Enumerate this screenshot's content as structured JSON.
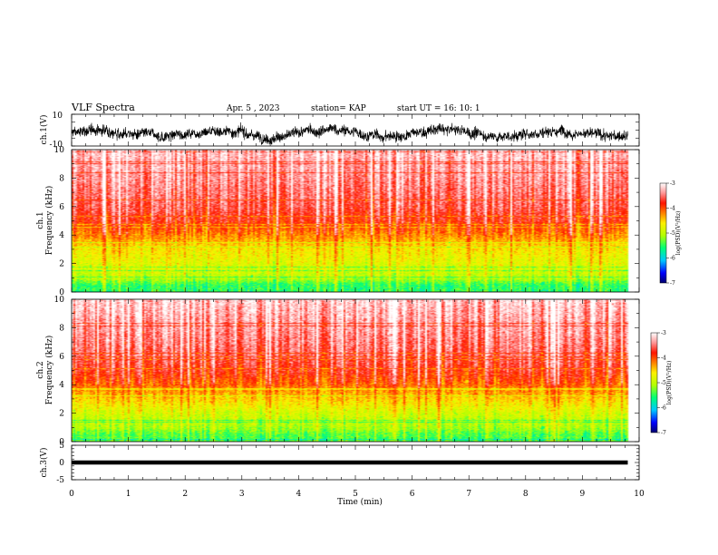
{
  "header": {
    "title": "VLF Spectra",
    "date": "Apr. 5 , 2023",
    "station": "station= KAP",
    "start_ut": "start UT = 16: 10: 1"
  },
  "colors": {
    "background": "#ffffff",
    "axis": "#000000",
    "waveform": "#000000",
    "colormap": [
      "#000080",
      "#0000ff",
      "#00c8ff",
      "#00ff80",
      "#b4ff00",
      "#ffff00",
      "#ff8000",
      "#ff0000",
      "#ff9a9a",
      "#ffffff"
    ]
  },
  "chart_data": [
    {
      "panel": "ch1-waveform",
      "type": "line",
      "ylabel": "ch.1(V)",
      "ylim": [
        -10,
        10
      ],
      "ytick_labels": [
        "10",
        "-10"
      ],
      "xlim": [
        0,
        10
      ],
      "approx_envelope": {
        "min": -9,
        "max": 9
      },
      "description_values": "dense noisy voltage trace between roughly -9 V and +8 V over 0-9.8 min"
    },
    {
      "panel": "ch1-spectrogram",
      "type": "heatmap",
      "ylabel": "ch.1\nFrequency (kHz)",
      "ylabel_line1": "ch.1",
      "ylabel_line2": "Frequency (kHz)",
      "ylim": [
        0,
        10
      ],
      "ytick_labels": [
        "0",
        "2",
        "4",
        "6",
        "8",
        "10"
      ],
      "xlim": [
        0,
        10
      ],
      "data_end_min": 9.8,
      "z_label": "log(PSD)(V²/Hz)",
      "z_range": [
        -7,
        -3
      ],
      "z_tick_labels": [
        "-3",
        "-4",
        "-5",
        "-6",
        "-7"
      ],
      "approx_log_psd_by_freq_khz": [
        [
          0.5,
          -5.5
        ],
        [
          1.0,
          -5.0
        ],
        [
          2.0,
          -4.8
        ],
        [
          3.0,
          -4.6
        ],
        [
          4.0,
          -4.2
        ],
        [
          5.0,
          -3.8
        ],
        [
          6.0,
          -3.6
        ],
        [
          8.0,
          -3.4
        ],
        [
          10.0,
          -3.2
        ]
      ]
    },
    {
      "panel": "ch2-spectrogram",
      "type": "heatmap",
      "ylabel": "ch.2\nFrequency (kHz)",
      "ylabel_line1": "ch.2",
      "ylabel_line2": "Frequency (kHz)",
      "ylim": [
        0,
        10
      ],
      "ytick_labels": [
        "0",
        "2",
        "4",
        "6",
        "8",
        "10"
      ],
      "xlim": [
        0,
        10
      ],
      "data_end_min": 9.8,
      "z_label": "log(PSD)(V²/Hz)",
      "z_range": [
        -7,
        -3
      ],
      "z_tick_labels": [
        "-3",
        "-4",
        "-5",
        "-6",
        "-7"
      ],
      "approx_log_psd_by_freq_khz": [
        [
          0.5,
          -5.4
        ],
        [
          1.0,
          -5.1
        ],
        [
          2.0,
          -4.9
        ],
        [
          3.0,
          -4.5
        ],
        [
          4.0,
          -4.1
        ],
        [
          5.0,
          -3.8
        ],
        [
          6.0,
          -3.6
        ],
        [
          8.0,
          -3.4
        ],
        [
          10.0,
          -3.2
        ]
      ]
    },
    {
      "panel": "ch3-waveform",
      "type": "line",
      "ylabel": "ch.3(V)",
      "ylim": [
        -5,
        5
      ],
      "ytick_labels": [
        "5",
        "0",
        "-5"
      ],
      "xlim": [
        0,
        10
      ],
      "xlabel": "Time (min)",
      "xtick_labels": [
        "0",
        "1",
        "2",
        "3",
        "4",
        "5",
        "6",
        "7",
        "8",
        "9",
        "10"
      ],
      "approx_level": 0,
      "approx_band": [
        -0.6,
        0.6
      ]
    }
  ]
}
